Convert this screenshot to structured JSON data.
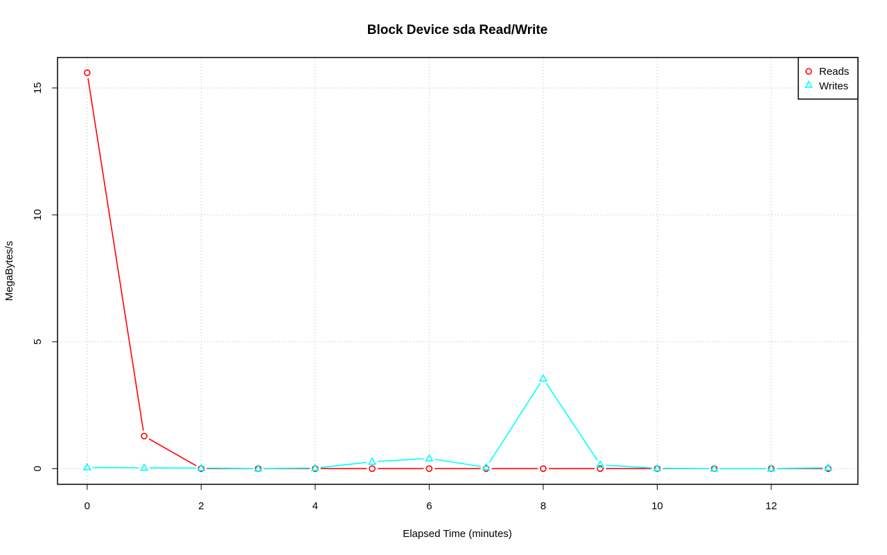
{
  "chart_data": {
    "type": "line",
    "title": "Block Device sda Read/Write",
    "xlabel": "Elapsed Time (minutes)",
    "ylabel": "MegaBytes/s",
    "x": [
      0,
      1,
      2,
      3,
      4,
      5,
      6,
      7,
      8,
      9,
      10,
      11,
      12,
      13
    ],
    "xlim": [
      -0.52,
      13.52
    ],
    "ylim": [
      -0.62,
      16.2
    ],
    "x_ticks": [
      "0",
      "2",
      "4",
      "6",
      "8",
      "10",
      "12"
    ],
    "y_ticks": [
      "0",
      "5",
      "10",
      "15"
    ],
    "grid": true,
    "legend_position": "top-right",
    "series": [
      {
        "name": "Reads",
        "color": "#ff0000",
        "marker": "circle",
        "values": [
          15.6,
          1.28,
          0.0,
          0.0,
          0.0,
          0.0,
          0.0,
          0.0,
          0.0,
          0.0,
          0.0,
          0.0,
          0.0,
          0.0
        ]
      },
      {
        "name": "Writes",
        "color": "#00ffff",
        "marker": "triangle",
        "values": [
          0.05,
          0.03,
          0.02,
          0.0,
          0.02,
          0.27,
          0.4,
          0.05,
          3.55,
          0.15,
          0.01,
          0.0,
          0.0,
          0.03
        ]
      }
    ]
  }
}
